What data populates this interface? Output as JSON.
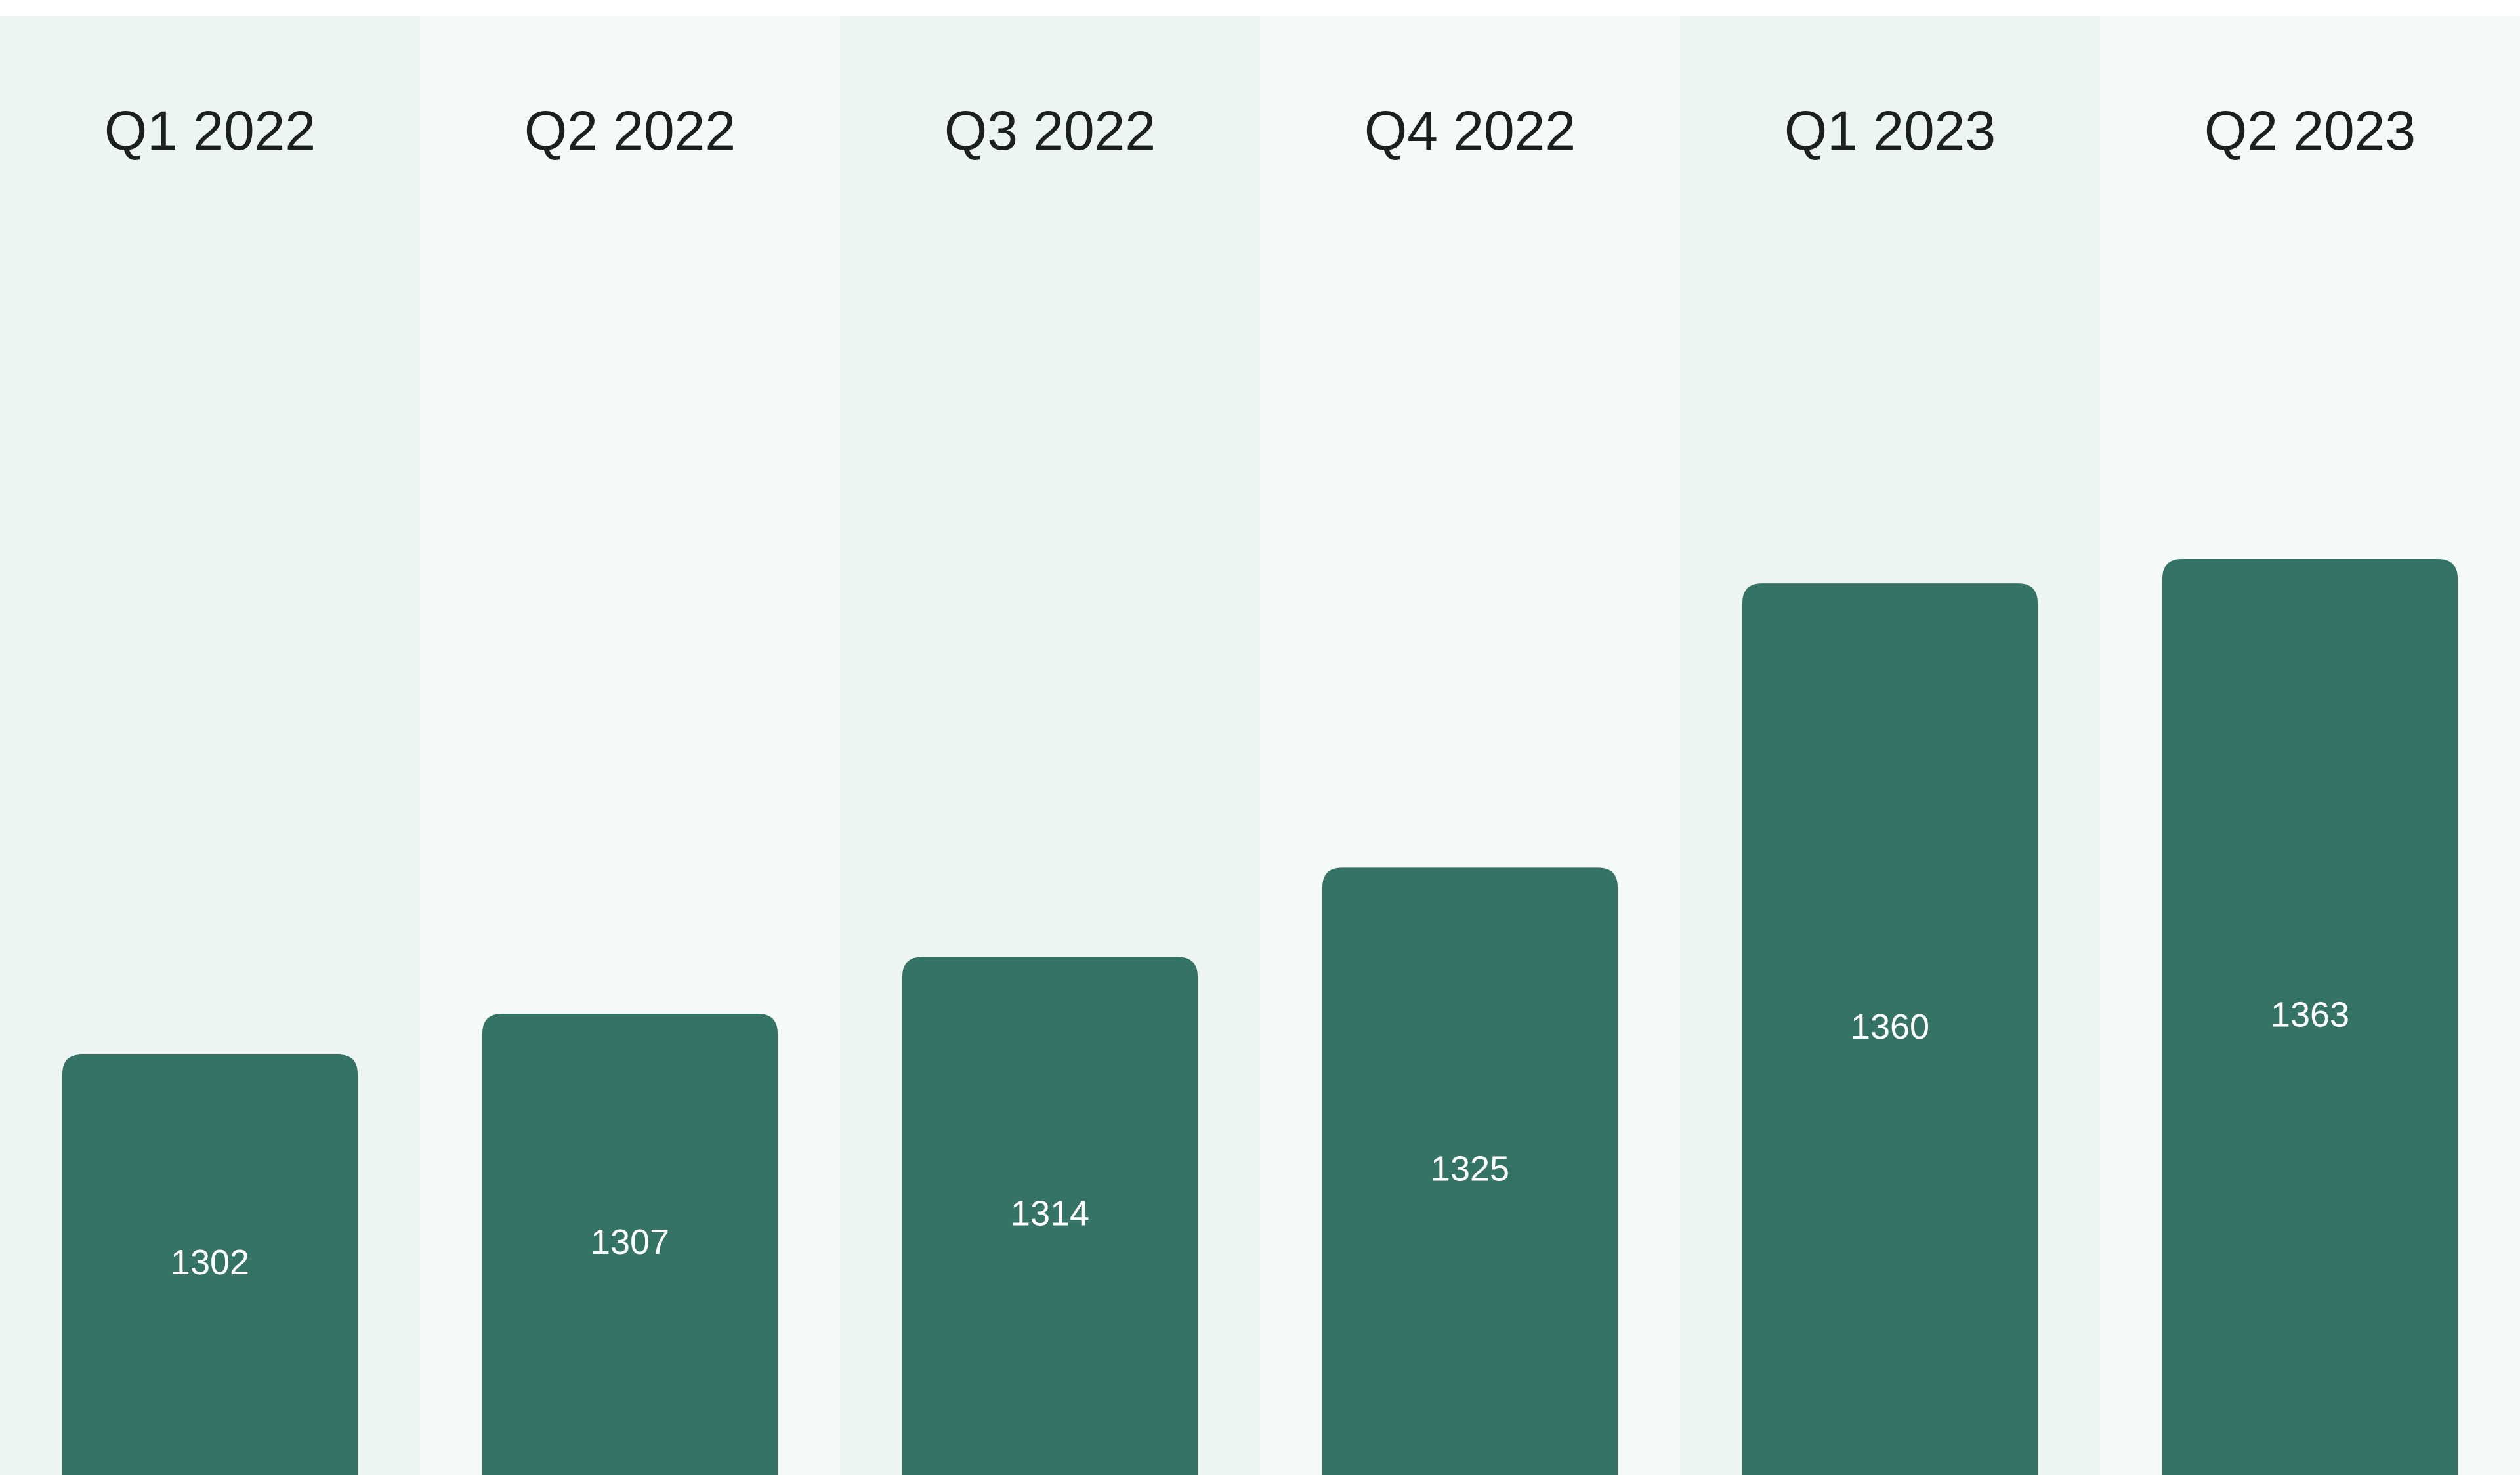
{
  "chart_data": {
    "type": "bar",
    "categories": [
      "Q1 2022",
      "Q2 2022",
      "Q3 2022",
      "Q4 2022",
      "Q1 2023",
      "Q2 2023"
    ],
    "values": [
      1302,
      1307,
      1314,
      1325,
      1360,
      1363
    ],
    "color": "#367367"
  }
}
